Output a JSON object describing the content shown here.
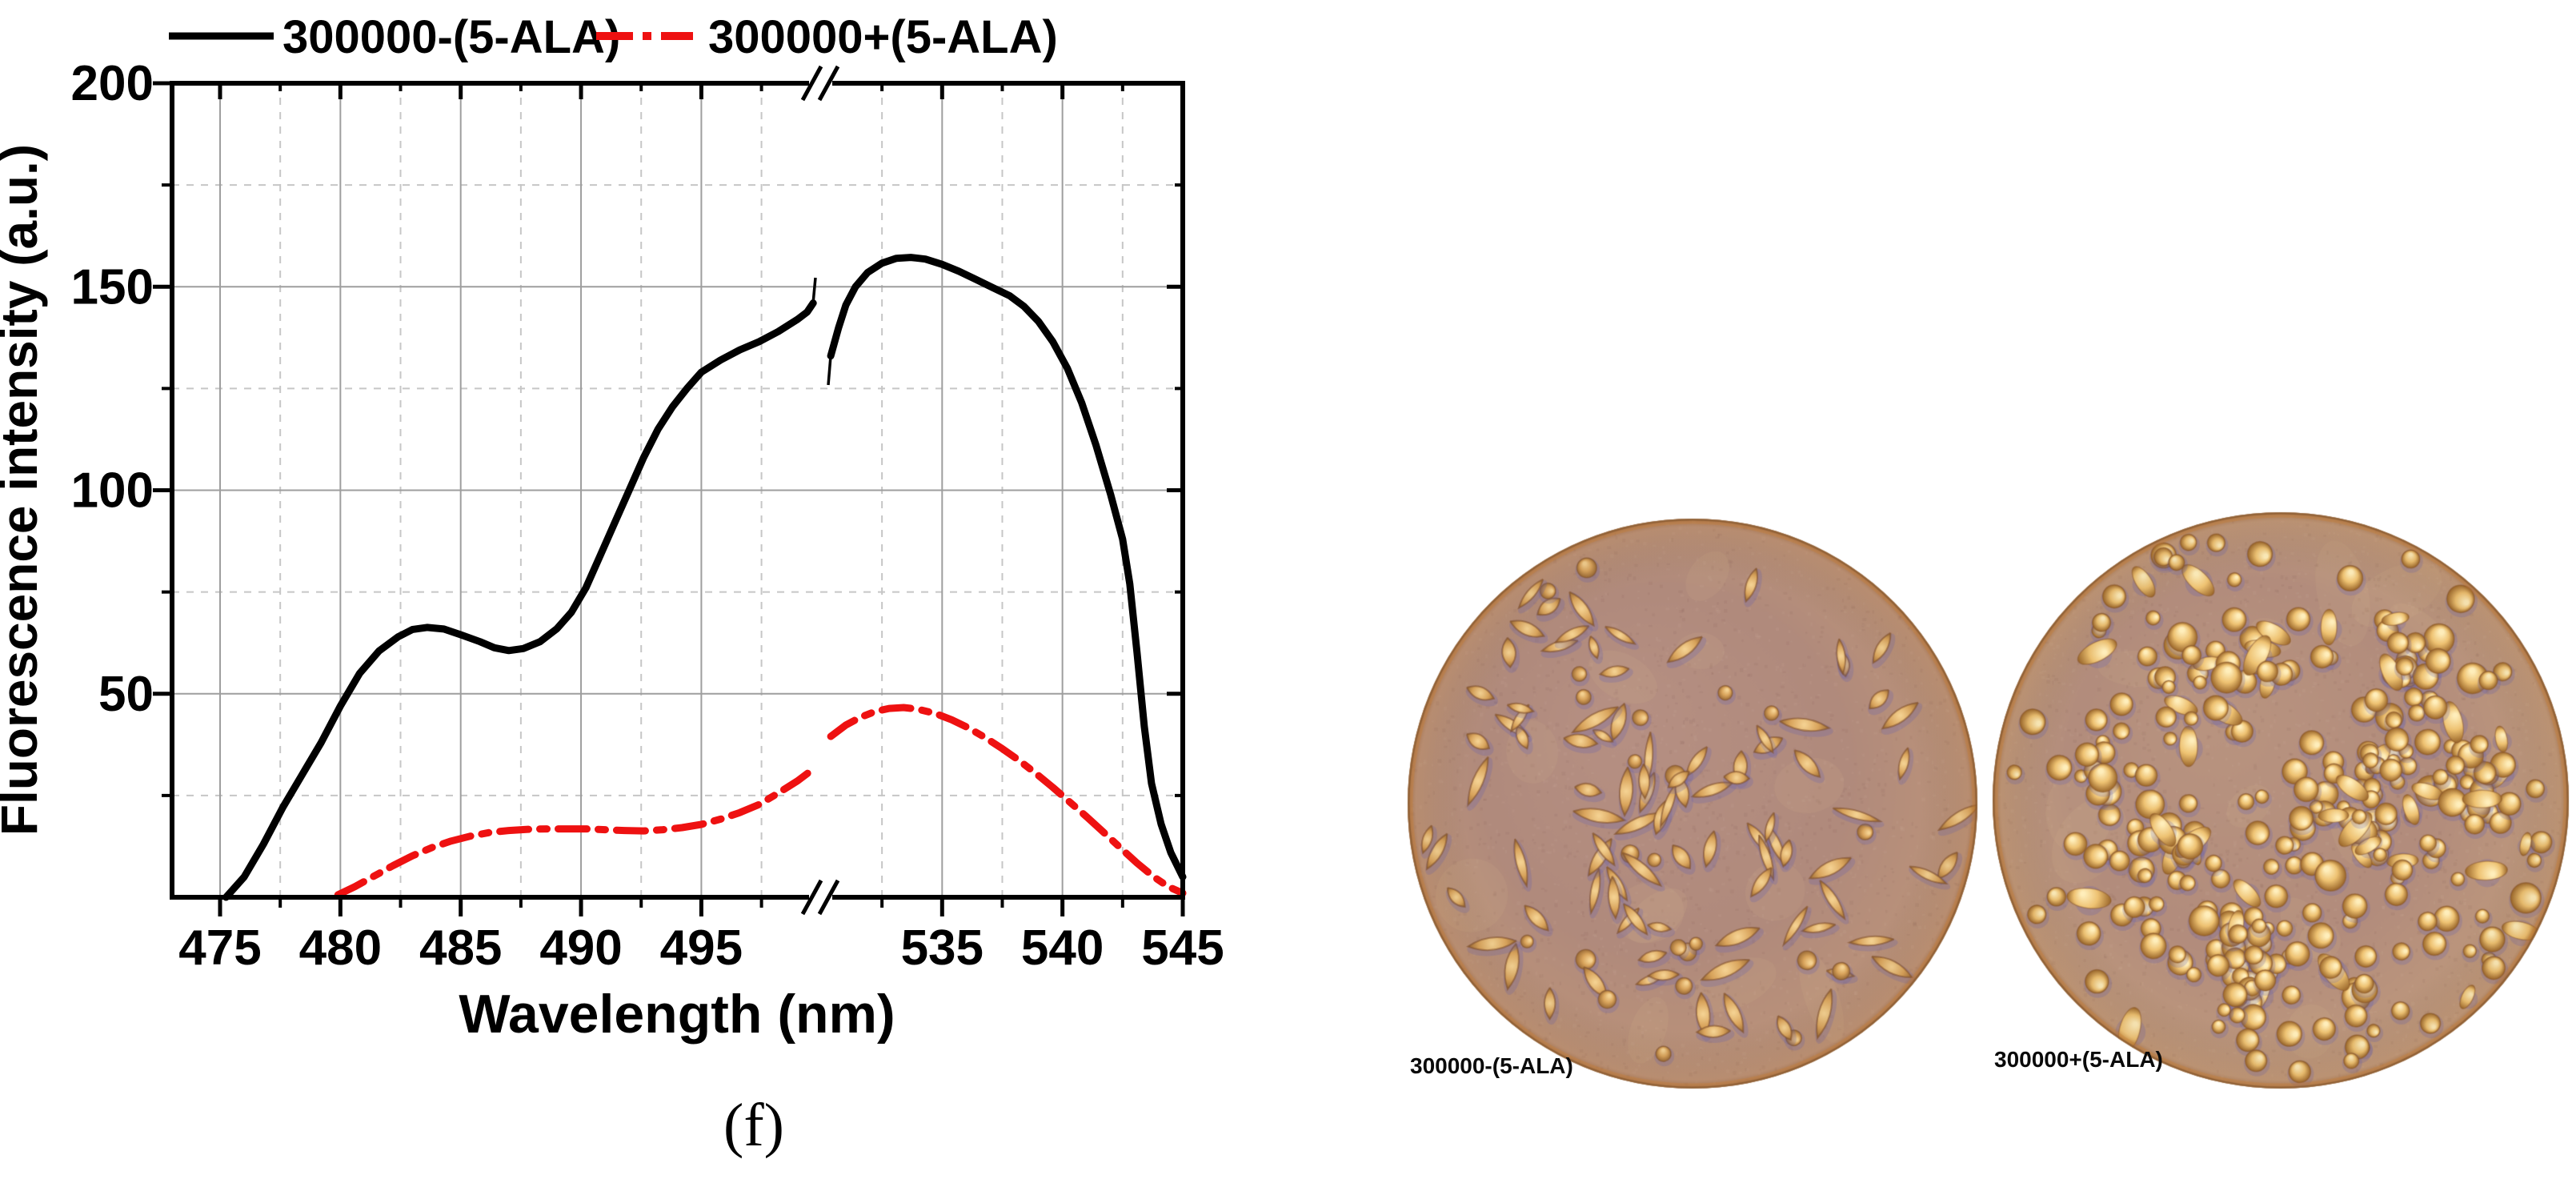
{
  "figure": {
    "caption": "(f)"
  },
  "chart_data": {
    "type": "line",
    "title": "",
    "xlabel": "Wavelength (nm)",
    "ylabel": "Fluorescence intensity (a.u.)",
    "x_axis": {
      "unit": "nm",
      "break": {
        "left_end": 499.65,
        "right_start": 530.37
      },
      "major_ticks": [
        475,
        480,
        485,
        490,
        495,
        535,
        540,
        545
      ],
      "minor_ticks": [
        477.5,
        482.5,
        487.5,
        492.5,
        497.5,
        532.5,
        537.5,
        542.5
      ],
      "tick_labels": [
        "475",
        "480",
        "485",
        "490",
        "495",
        "535",
        "540",
        "545"
      ]
    },
    "y_axis": {
      "min": 0,
      "max": 200,
      "major_ticks": [
        50,
        100,
        150,
        200
      ],
      "minor_ticks": [
        25,
        75,
        125,
        175
      ],
      "tick_labels": [
        "50",
        "100",
        "150",
        "200"
      ]
    },
    "grid": {
      "major_color": "#9e9e9e",
      "minor_color": "#c6c6c6",
      "minor_dashed": true,
      "grid_on": true
    },
    "legend": [
      {
        "label": "300000-(5-ALA)",
        "color": "#000000",
        "style": "solid"
      },
      {
        "label": "300000+(5-ALA)",
        "color": "#ee1111",
        "style": "dash-dot"
      }
    ],
    "series": [
      {
        "name": "300000-(5-ALA)",
        "color": "#000000",
        "style": "solid",
        "width": 9,
        "points_before_break": [
          [
            475.25,
            0
          ],
          [
            476.0,
            5
          ],
          [
            476.8,
            13
          ],
          [
            477.6,
            22
          ],
          [
            478.4,
            30
          ],
          [
            479.2,
            38
          ],
          [
            480.0,
            47
          ],
          [
            480.8,
            55
          ],
          [
            481.6,
            60.5
          ],
          [
            482.4,
            64
          ],
          [
            483.0,
            65.8
          ],
          [
            483.6,
            66.3
          ],
          [
            484.3,
            65.9
          ],
          [
            485.0,
            64.5
          ],
          [
            485.8,
            62.8
          ],
          [
            486.4,
            61.3
          ],
          [
            487.0,
            60.6
          ],
          [
            487.6,
            61.1
          ],
          [
            488.3,
            62.8
          ],
          [
            489.0,
            66
          ],
          [
            489.6,
            70
          ],
          [
            490.2,
            76
          ],
          [
            490.8,
            84
          ],
          [
            491.4,
            92
          ],
          [
            492.0,
            100
          ],
          [
            492.6,
            108
          ],
          [
            493.2,
            115
          ],
          [
            493.8,
            120.5
          ],
          [
            494.4,
            125
          ],
          [
            495.0,
            129
          ],
          [
            495.8,
            132
          ],
          [
            496.6,
            134.5
          ],
          [
            497.4,
            136.5
          ],
          [
            498.2,
            139
          ],
          [
            499.0,
            142
          ],
          [
            499.4,
            143.8
          ],
          [
            499.65,
            146
          ]
        ],
        "points_after_break": [
          [
            530.37,
            133
          ],
          [
            530.7,
            140
          ],
          [
            531.0,
            145.5
          ],
          [
            531.4,
            150
          ],
          [
            531.9,
            153.5
          ],
          [
            532.5,
            155.8
          ],
          [
            533.1,
            157
          ],
          [
            533.7,
            157.2
          ],
          [
            534.3,
            156.8
          ],
          [
            535.0,
            155.5
          ],
          [
            535.7,
            153.8
          ],
          [
            536.4,
            151.8
          ],
          [
            537.1,
            149.8
          ],
          [
            537.8,
            147.8
          ],
          [
            538.4,
            145.2
          ],
          [
            539.0,
            141.5
          ],
          [
            539.6,
            136.5
          ],
          [
            540.2,
            130
          ],
          [
            540.8,
            121.5
          ],
          [
            541.4,
            111
          ],
          [
            542.0,
            99
          ],
          [
            542.5,
            88
          ],
          [
            542.8,
            77
          ],
          [
            543.1,
            60
          ],
          [
            543.4,
            42
          ],
          [
            543.7,
            28
          ],
          [
            544.1,
            18
          ],
          [
            544.5,
            11
          ],
          [
            545.0,
            5
          ]
        ]
      },
      {
        "name": "300000+(5-ALA)",
        "color": "#ee1111",
        "style": "dash-dot",
        "width": 9,
        "points_before_break": [
          [
            479.9,
            0.6
          ],
          [
            480.6,
            2.6
          ],
          [
            481.4,
            5.2
          ],
          [
            482.2,
            7.8
          ],
          [
            483.0,
            10.2
          ],
          [
            483.8,
            12.2
          ],
          [
            484.6,
            13.8
          ],
          [
            485.4,
            15.0
          ],
          [
            486.2,
            15.9
          ],
          [
            487.0,
            16.4
          ],
          [
            487.8,
            16.7
          ],
          [
            488.6,
            16.8
          ],
          [
            489.4,
            16.8
          ],
          [
            490.2,
            16.8
          ],
          [
            491.0,
            16.6
          ],
          [
            491.8,
            16.4
          ],
          [
            492.6,
            16.3
          ],
          [
            493.4,
            16.6
          ],
          [
            494.2,
            17.1
          ],
          [
            495.0,
            17.9
          ],
          [
            495.8,
            19.2
          ],
          [
            496.6,
            20.8
          ],
          [
            497.4,
            22.8
          ],
          [
            498.2,
            25.6
          ],
          [
            499.0,
            28.6
          ],
          [
            499.65,
            31.5
          ]
        ],
        "points_after_break": [
          [
            530.37,
            39.5
          ],
          [
            531.0,
            42.3
          ],
          [
            531.6,
            44.2
          ],
          [
            532.2,
            45.6
          ],
          [
            532.8,
            46.4
          ],
          [
            533.4,
            46.6
          ],
          [
            534.0,
            46.2
          ],
          [
            534.7,
            45.2
          ],
          [
            535.4,
            43.6
          ],
          [
            536.1,
            41.6
          ],
          [
            536.8,
            39.2
          ],
          [
            537.5,
            36.5
          ],
          [
            538.2,
            33.6
          ],
          [
            538.9,
            30.4
          ],
          [
            539.6,
            27
          ],
          [
            540.3,
            23.4
          ],
          [
            541.0,
            19.8
          ],
          [
            541.7,
            16
          ],
          [
            542.4,
            12.2
          ],
          [
            543.1,
            8.4
          ],
          [
            543.8,
            5
          ],
          [
            544.4,
            2.6
          ],
          [
            545.0,
            1
          ]
        ]
      }
    ]
  },
  "microscopy": {
    "panels": [
      {
        "label": "300000-(5-ALA)",
        "cell_shape": "spindle",
        "cell_count": 118,
        "seed": 7,
        "background": {
          "center": "#b58f82",
          "mid": "#b08a7c",
          "edge": "#bd9479",
          "rim": "#8a5c33"
        },
        "cells": {
          "body": "#d9a45c",
          "highlight": "#f4d191",
          "outline": "#7c4b26",
          "shade": "#9a6a35",
          "halo": "#5b5bb4"
        }
      },
      {
        "label": "300000+(5-ALA)",
        "cell_shape": "round",
        "cell_count": 320,
        "seed": 13,
        "background": {
          "center": "#b8937f",
          "mid": "#b28c7c",
          "edge": "#c09a7c",
          "rim": "#8a5c33"
        },
        "cells": {
          "body": "#eec272",
          "highlight": "#ffeebb",
          "outline": "#8a5526",
          "shade": "#9a662a",
          "halo": "#5b5bb4"
        }
      }
    ]
  }
}
